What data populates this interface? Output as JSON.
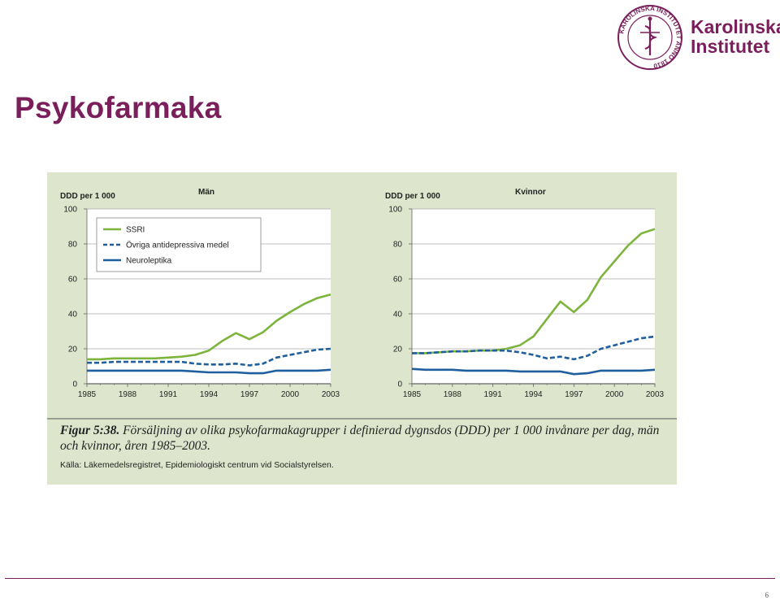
{
  "slide": {
    "title": "Psykofarmaka",
    "page_number": "6"
  },
  "logo": {
    "line1": "Karolinska",
    "line2": "Institutet",
    "seal_text": "KAROLINSKA INSTITUTET ANNO 1810"
  },
  "caption": {
    "figure_label": "Figur 5:38.",
    "text": "Försäljning av olika psykofarmakagrupper i definierad dygnsdos (DDD) per 1 000 invånare per dag, män och kvinnor, åren 1985–2003.",
    "source": "Källa: Läkemedelsregistret, Epidemiologiskt centrum vid Socialstyrelsen."
  },
  "colors": {
    "ssri": "#7db43c",
    "ovriga": "#1f5f9e",
    "neuroleptika": "#1f5f9e",
    "brand": "#7a1f5c",
    "panel_bg": "#dde6cd"
  },
  "chart_data": [
    {
      "type": "line",
      "title": "Män",
      "ylabel": "DDD per 1 000",
      "ylim": [
        0,
        100
      ],
      "yticks": [
        0,
        20,
        40,
        60,
        80,
        100
      ],
      "xticks": [
        1985,
        1988,
        1991,
        1994,
        1997,
        2000,
        2003
      ],
      "x": [
        1985,
        1986,
        1987,
        1988,
        1989,
        1990,
        1991,
        1992,
        1993,
        1994,
        1995,
        1996,
        1997,
        1998,
        1999,
        2000,
        2001,
        2002,
        2003
      ],
      "legend": "top-left",
      "series": [
        {
          "name": "SSRI",
          "style": "solid-green",
          "values": [
            14,
            14,
            14.5,
            14.5,
            14.5,
            14.5,
            15,
            15.5,
            16.5,
            19,
            24.5,
            29,
            25.5,
            29.5,
            36,
            41,
            45.5,
            49,
            51
          ]
        },
        {
          "name": "Övriga antidepressiva medel",
          "style": "dashed-blue",
          "values": [
            12,
            12,
            12.5,
            12.5,
            12.5,
            12.5,
            12.5,
            12.5,
            11.5,
            11,
            11,
            11.5,
            10.5,
            11.5,
            15,
            16.5,
            18,
            19.5,
            20
          ]
        },
        {
          "name": "Neuroleptika",
          "style": "solid-blue",
          "values": [
            7.5,
            7.5,
            7.5,
            7.5,
            7.5,
            7.5,
            7.5,
            7.5,
            7,
            6.5,
            6.5,
            6.5,
            6,
            6,
            7.5,
            7.5,
            7.5,
            7.5,
            8
          ]
        }
      ]
    },
    {
      "type": "line",
      "title": "Kvinnor",
      "ylabel": "DDD per 1 000",
      "ylim": [
        0,
        100
      ],
      "yticks": [
        0,
        20,
        40,
        60,
        80,
        100
      ],
      "xticks": [
        1985,
        1988,
        1991,
        1994,
        1997,
        2000,
        2003
      ],
      "x": [
        1985,
        1986,
        1987,
        1988,
        1989,
        1990,
        1991,
        1992,
        1993,
        1994,
        1995,
        1996,
        1997,
        1998,
        1999,
        2000,
        2001,
        2002,
        2003
      ],
      "series": [
        {
          "name": "SSRI",
          "style": "solid-green",
          "values": [
            17.5,
            17.5,
            18,
            18.5,
            18.5,
            19,
            19,
            20,
            22,
            27,
            37,
            47,
            41,
            48,
            61,
            70,
            79,
            86,
            88.5
          ]
        },
        {
          "name": "Övriga antidepressiva medel",
          "style": "dashed-blue",
          "values": [
            17.5,
            17.5,
            18,
            18.5,
            18.5,
            19,
            19,
            19,
            18,
            16.5,
            14.5,
            15.5,
            14,
            16,
            20,
            22,
            24,
            26,
            27
          ]
        },
        {
          "name": "Neuroleptika",
          "style": "solid-blue",
          "values": [
            8.5,
            8,
            8,
            8,
            7.5,
            7.5,
            7.5,
            7.5,
            7,
            7,
            7,
            7,
            5.5,
            6,
            7.5,
            7.5,
            7.5,
            7.5,
            8
          ]
        }
      ]
    }
  ]
}
